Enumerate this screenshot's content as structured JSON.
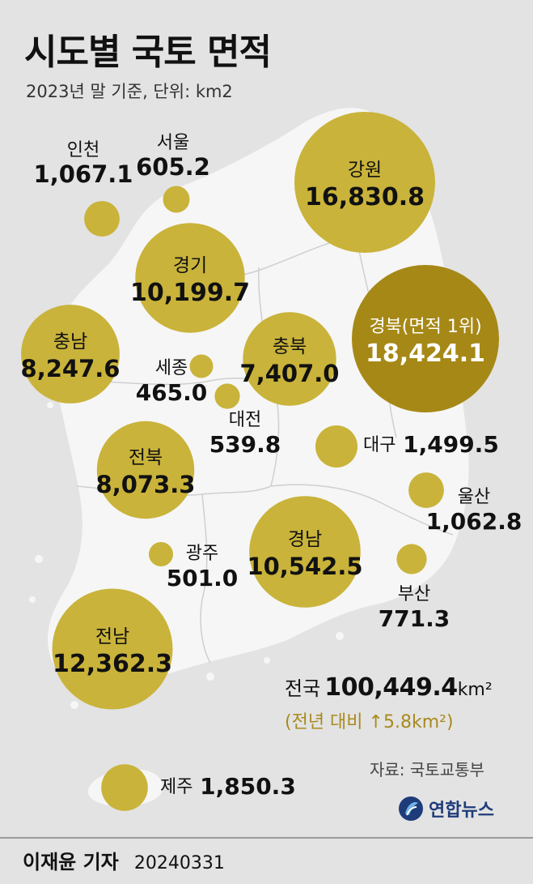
{
  "header": {
    "title": "시도별 국토 면적",
    "subtitle": "2023년 말 기준, 단위: km2"
  },
  "colors": {
    "bubble": "#c9b33a",
    "bubble_top": "#a68816",
    "map_land": "#f6f6f6",
    "background": "#e3e3e3"
  },
  "chart_data": {
    "type": "bubble-map",
    "unit": "km2",
    "regions": [
      {
        "name": "인천",
        "value_label": "1,067.1",
        "value": 1067.1
      },
      {
        "name": "서울",
        "value_label": "605.2",
        "value": 605.2
      },
      {
        "name": "강원",
        "value_label": "16,830.8",
        "value": 16830.8
      },
      {
        "name": "경기",
        "value_label": "10,199.7",
        "value": 10199.7
      },
      {
        "name": "경북(면적 1위)",
        "value_label": "18,424.1",
        "value": 18424.1
      },
      {
        "name": "충남",
        "value_label": "8,247.6",
        "value": 8247.6
      },
      {
        "name": "충북",
        "value_label": "7,407.0",
        "value": 7407.0
      },
      {
        "name": "세종",
        "value_label": "465.0",
        "value": 465.0
      },
      {
        "name": "대전",
        "value_label": "539.8",
        "value": 539.8
      },
      {
        "name": "전북",
        "value_label": "8,073.3",
        "value": 8073.3
      },
      {
        "name": "대구",
        "value_label": "1,499.5",
        "value": 1499.5
      },
      {
        "name": "울산",
        "value_label": "1,062.8",
        "value": 1062.8
      },
      {
        "name": "경남",
        "value_label": "10,542.5",
        "value": 10542.5
      },
      {
        "name": "광주",
        "value_label": "501.0",
        "value": 501.0
      },
      {
        "name": "부산",
        "value_label": "771.3",
        "value": 771.3
      },
      {
        "name": "전남",
        "value_label": "12,362.3",
        "value": 12362.3
      },
      {
        "name": "제주",
        "value_label": "1,850.3",
        "value": 1850.3
      }
    ]
  },
  "total": {
    "label": "전국",
    "value": "100,449.4",
    "unit": "km²",
    "change": "(전년 대비 ↑5.8km²)"
  },
  "source": "자료: 국토교통부",
  "agency": "연합뉴스",
  "byline": {
    "reporter": "이재윤 기자",
    "date": "20240331"
  }
}
